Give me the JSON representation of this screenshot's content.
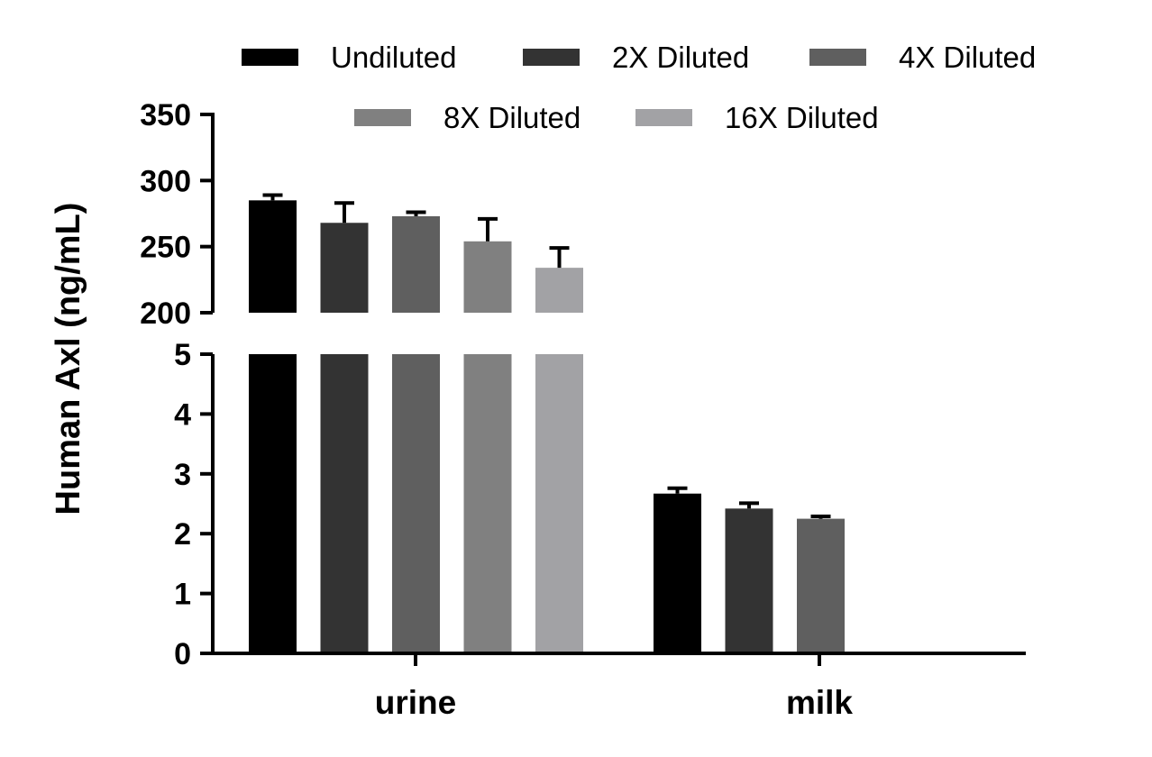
{
  "chart_data": {
    "type": "bar",
    "ylabel": "Human Axl (ng/mL)",
    "categories": [
      "urine",
      "milk"
    ],
    "series": [
      {
        "name": "Undiluted",
        "color": "#000000",
        "values": [
          285,
          2.67
        ],
        "errors": [
          4,
          0.09
        ]
      },
      {
        "name": "2X Diluted",
        "color": "#333333",
        "values": [
          268,
          2.42
        ],
        "errors": [
          15,
          0.09
        ]
      },
      {
        "name": "4X Diluted",
        "color": "#5f5f5f",
        "values": [
          273,
          2.25
        ],
        "errors": [
          3,
          0.04
        ]
      },
      {
        "name": "8X Diluted",
        "color": "#808080",
        "values": [
          254,
          null
        ],
        "errors": [
          17,
          null
        ]
      },
      {
        "name": "16X Diluted",
        "color": "#a2a2a5",
        "values": [
          234,
          null
        ],
        "errors": [
          15,
          null
        ]
      }
    ],
    "y_axis_segments": {
      "lower": {
        "range": [
          0,
          5
        ],
        "ticks": [
          "0",
          "1",
          "2",
          "3",
          "4",
          "5"
        ]
      },
      "upper": {
        "range": [
          200,
          350
        ],
        "ticks": [
          "200",
          "250",
          "300",
          "350"
        ]
      }
    },
    "axis_break": true,
    "grid": false,
    "legend_position": "top"
  }
}
